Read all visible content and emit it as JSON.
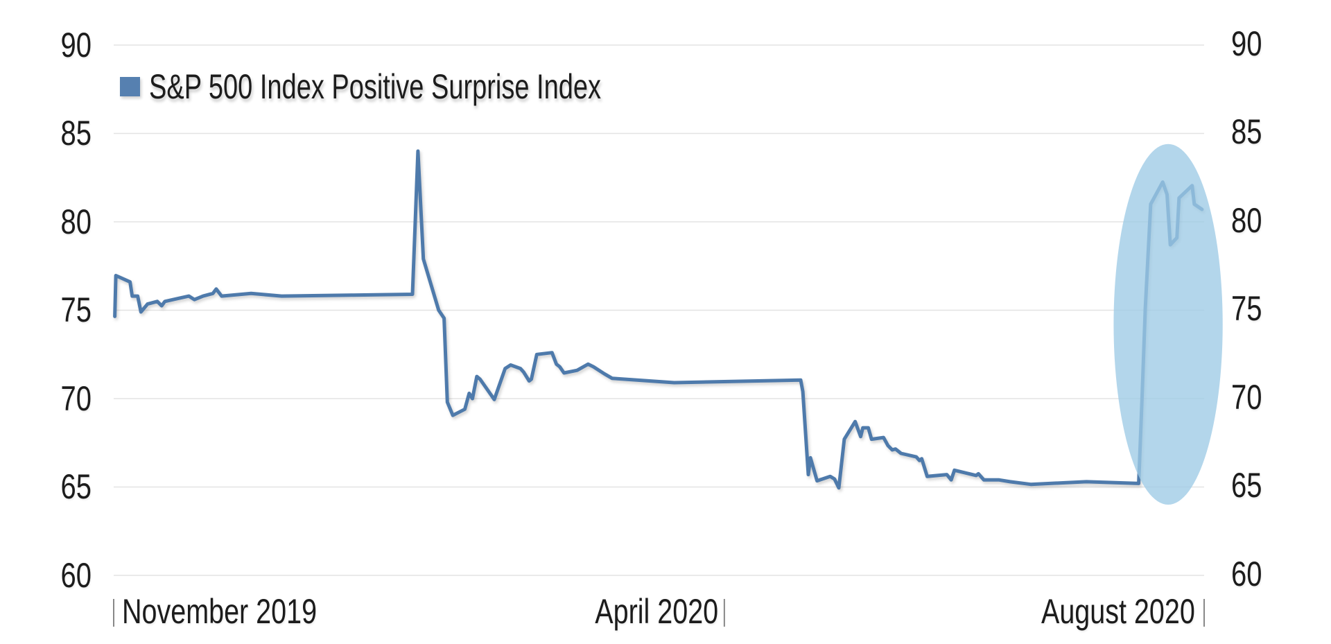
{
  "legend": {
    "label": "S&P 500 Index Positive Surprise Index",
    "color": "#5680b0"
  },
  "y_axis_left": {
    "ticks": [
      "90",
      "85",
      "80",
      "75",
      "70",
      "65",
      "60"
    ]
  },
  "y_axis_right": {
    "ticks": [
      "90",
      "85",
      "80",
      "75",
      "70",
      "65",
      "60"
    ]
  },
  "x_axis": {
    "labels": [
      "November 2019",
      "April 2020",
      "August 2020"
    ]
  },
  "colors": {
    "line": "#4e7aab",
    "gridline": "#e3e3e3",
    "highlight_ellipse": "#9ecbe6",
    "tick": "#888888"
  },
  "chart_data": {
    "type": "line",
    "title": "",
    "xlabel": "",
    "ylabel": "",
    "ylim": [
      60,
      90
    ],
    "yticks": [
      60,
      65,
      70,
      75,
      80,
      85,
      90
    ],
    "grid": true,
    "legend_position": "top-left",
    "x_tick_labels": [
      {
        "label": "November 2019",
        "pos": 0.0,
        "align": "start"
      },
      {
        "label": "April 2020",
        "pos": 0.56,
        "align": "end"
      },
      {
        "label": "August 2020",
        "pos": 1.0,
        "align": "end"
      }
    ],
    "annotations": [
      {
        "type": "ellipse",
        "description": "highlight around August 2020 surge",
        "cx": 0.967,
        "cy_value": 74.3,
        "x_radius": 0.05,
        "y_span": [
          64.0,
          84.4
        ]
      }
    ],
    "series": [
      {
        "name": "S&P 500 Index Positive Surprise Index",
        "x_fraction_and_value": [
          [
            0.001,
            74.65
          ],
          [
            0.002,
            76.96
          ],
          [
            0.015,
            76.6
          ],
          [
            0.017,
            75.8
          ],
          [
            0.022,
            75.8
          ],
          [
            0.025,
            74.9
          ],
          [
            0.031,
            75.35
          ],
          [
            0.04,
            75.5
          ],
          [
            0.044,
            75.25
          ],
          [
            0.047,
            75.5
          ],
          [
            0.069,
            75.8
          ],
          [
            0.074,
            75.6
          ],
          [
            0.082,
            75.8
          ],
          [
            0.091,
            75.95
          ],
          [
            0.094,
            76.2
          ],
          [
            0.099,
            75.8
          ],
          [
            0.126,
            75.95
          ],
          [
            0.154,
            75.8
          ],
          [
            0.274,
            75.9
          ],
          [
            0.279,
            84.0
          ],
          [
            0.284,
            77.9
          ],
          [
            0.298,
            75.0
          ],
          [
            0.303,
            74.55
          ],
          [
            0.306,
            69.8
          ],
          [
            0.311,
            69.05
          ],
          [
            0.322,
            69.4
          ],
          [
            0.326,
            70.3
          ],
          [
            0.329,
            70.0
          ],
          [
            0.333,
            71.25
          ],
          [
            0.336,
            71.1
          ],
          [
            0.349,
            69.95
          ],
          [
            0.355,
            71.0
          ],
          [
            0.359,
            71.7
          ],
          [
            0.364,
            71.9
          ],
          [
            0.373,
            71.7
          ],
          [
            0.376,
            71.5
          ],
          [
            0.381,
            71.0
          ],
          [
            0.383,
            71.1
          ],
          [
            0.388,
            72.5
          ],
          [
            0.402,
            72.6
          ],
          [
            0.406,
            71.95
          ],
          [
            0.409,
            71.8
          ],
          [
            0.413,
            71.45
          ],
          [
            0.425,
            71.6
          ],
          [
            0.435,
            71.95
          ],
          [
            0.44,
            71.8
          ],
          [
            0.45,
            71.4
          ],
          [
            0.457,
            71.15
          ],
          [
            0.514,
            70.9
          ],
          [
            0.63,
            71.05
          ],
          [
            0.632,
            70.4
          ],
          [
            0.637,
            65.7
          ],
          [
            0.639,
            66.65
          ],
          [
            0.645,
            65.35
          ],
          [
            0.657,
            65.6
          ],
          [
            0.661,
            65.45
          ],
          [
            0.665,
            64.95
          ],
          [
            0.67,
            67.7
          ],
          [
            0.68,
            68.7
          ],
          [
            0.685,
            67.85
          ],
          [
            0.687,
            68.35
          ],
          [
            0.692,
            68.35
          ],
          [
            0.695,
            67.7
          ],
          [
            0.706,
            67.8
          ],
          [
            0.71,
            67.35
          ],
          [
            0.714,
            67.1
          ],
          [
            0.717,
            67.15
          ],
          [
            0.722,
            66.9
          ],
          [
            0.736,
            66.7
          ],
          [
            0.739,
            66.5
          ],
          [
            0.741,
            66.6
          ],
          [
            0.746,
            65.6
          ],
          [
            0.764,
            65.7
          ],
          [
            0.768,
            65.4
          ],
          [
            0.771,
            65.95
          ],
          [
            0.791,
            65.65
          ],
          [
            0.793,
            65.75
          ],
          [
            0.798,
            65.4
          ],
          [
            0.812,
            65.4
          ],
          [
            0.822,
            65.3
          ],
          [
            0.841,
            65.15
          ],
          [
            0.892,
            65.3
          ],
          [
            0.94,
            65.2
          ],
          [
            0.943,
            69.9
          ],
          [
            0.946,
            75.1
          ],
          [
            0.951,
            81.0
          ],
          [
            0.962,
            82.25
          ],
          [
            0.966,
            81.55
          ],
          [
            0.969,
            78.7
          ],
          [
            0.975,
            79.1
          ],
          [
            0.977,
            81.35
          ],
          [
            0.989,
            82.05
          ],
          [
            0.991,
            81.0
          ],
          [
            0.998,
            80.7
          ]
        ]
      }
    ]
  }
}
